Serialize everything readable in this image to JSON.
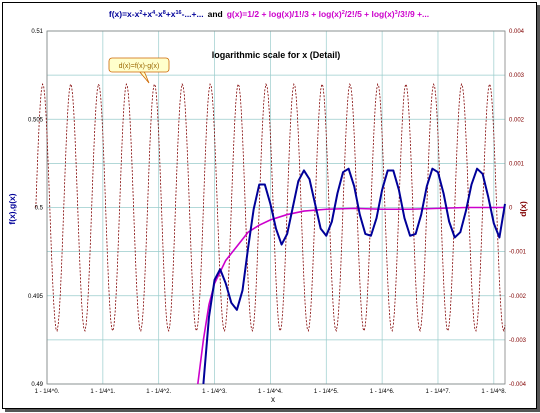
{
  "chart_data": {
    "type": "line",
    "title_parts": {
      "f": "f(x)=x-x",
      "f_sup1": "2",
      "f_mid1": "+x",
      "f_sup2": "4",
      "f_mid2": "-x",
      "f_sup3": "8",
      "f_mid3": "+x",
      "f_sup4": "16",
      "f_end": "-...+...",
      "and": "and",
      "g": "g(x)=1/2 + log(x)/1!/3 + log(x)",
      "g_sup1": "2",
      "g_mid1": "/2!/5 + log(x)",
      "g_sup2": "3",
      "g_end": "/3!/9 +..."
    },
    "subtitle": "logarithmic scale for x (Detail)",
    "annotation": "d(x)=f(x)-g(x)",
    "xlabel": "x",
    "ylabel_left": "f(x),g(x)",
    "ylabel_right": "d(x)",
    "ylim_left": [
      0.49,
      0.51
    ],
    "ylim_right": [
      -0.004,
      0.004
    ],
    "xlim": [
      0,
      8.2
    ],
    "left_ticks": [
      "0.49",
      "0.495",
      "0.5",
      "0.505",
      "0.51"
    ],
    "right_ticks": [
      "-0.004",
      "-0.003",
      "-0.002",
      "-0.001",
      "0",
      "0.001",
      "0.002",
      "0.003",
      "0.004"
    ],
    "x_ticks": [
      "1 - 1/4^0.",
      "1 - 1/4^1.",
      "1 - 1/4^2.",
      "1 - 1/4^3.",
      "1 - 1/4^4.",
      "1 - 1/4^5.",
      "1 - 1/4^6.",
      "1 - 1/4^7.",
      "1 - 1/4^8."
    ],
    "grid": true,
    "colors": {
      "f": "#000099",
      "g": "#cc00cc",
      "d": "#800000",
      "grid": "#99cccc",
      "title_f": "#000099",
      "title_g": "#cc00cc",
      "annotation_bg": "#ffffcc",
      "annotation_border": "#cc6600",
      "annotation_text": "#996600"
    },
    "series": [
      {
        "name": "f(x)",
        "axis": "left",
        "x": [
          2.8,
          2.9,
          3.0,
          3.1,
          3.2,
          3.3,
          3.4,
          3.5,
          3.6,
          3.7,
          3.8,
          3.9,
          4.0,
          4.1,
          4.2,
          4.3,
          4.4,
          4.5,
          4.6,
          4.7,
          4.8,
          4.9,
          5.0,
          5.1,
          5.2,
          5.3,
          5.4,
          5.5,
          5.6,
          5.7,
          5.8,
          5.9,
          6.0,
          6.1,
          6.2,
          6.3,
          6.4,
          6.5,
          6.6,
          6.7,
          6.8,
          6.9,
          7.0,
          7.1,
          7.2,
          7.3,
          7.4,
          7.5,
          7.6,
          7.7,
          7.8,
          7.9,
          8.0,
          8.1,
          8.2
        ],
        "y": [
          0.49,
          0.4938,
          0.4959,
          0.4965,
          0.4957,
          0.4946,
          0.4942,
          0.4953,
          0.4977,
          0.4999,
          0.5013,
          0.5013,
          0.5002,
          0.4988,
          0.4979,
          0.4985,
          0.5,
          0.5015,
          0.5021,
          0.5016,
          0.5002,
          0.4988,
          0.4984,
          0.4992,
          0.5008,
          0.502,
          0.5022,
          0.5012,
          0.4996,
          0.4985,
          0.4984,
          0.4994,
          0.501,
          0.5021,
          0.5021,
          0.501,
          0.4994,
          0.4984,
          0.4985,
          0.4996,
          0.5012,
          0.5022,
          0.502,
          0.5008,
          0.4992,
          0.4983,
          0.4986,
          0.4998,
          0.5013,
          0.5022,
          0.5019,
          0.5006,
          0.4991,
          0.4983,
          0.5002
        ]
      },
      {
        "name": "g(x)",
        "axis": "left",
        "x": [
          2.7,
          2.8,
          2.9,
          3.0,
          3.2,
          3.4,
          3.6,
          3.8,
          4.0,
          4.3,
          4.6,
          5.0,
          5.5,
          6.0,
          6.5,
          7.0,
          7.5,
          8.0,
          8.2
        ],
        "y": [
          0.49,
          0.4925,
          0.4945,
          0.4957,
          0.497,
          0.4978,
          0.4986,
          0.499,
          0.4993,
          0.4996,
          0.4998,
          0.4999,
          0.49995,
          0.4999,
          0.4999,
          0.49995,
          0.5,
          0.5,
          0.5
        ]
      },
      {
        "name": "d(x)",
        "axis": "right",
        "model": {
          "amplitude": 0.0028,
          "period": 0.5,
          "phase": -0.2,
          "x_start": -0.2,
          "x_end": 8.2
        }
      }
    ]
  }
}
